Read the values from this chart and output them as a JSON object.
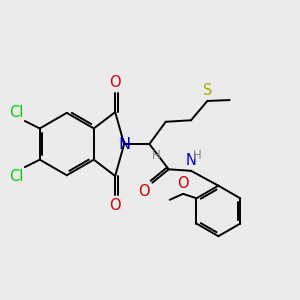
{
  "background_color": "#ebebeb",
  "line_color": "#000000",
  "line_width": 1.4,
  "dbo": 0.01,
  "fig_width": 3.0,
  "fig_height": 3.0,
  "dpi": 100,
  "colors": {
    "Cl": "#00cc00",
    "N": "#0000cc",
    "O": "#cc0000",
    "S": "#aaaa00",
    "H": "#888888",
    "C": "#000000"
  }
}
